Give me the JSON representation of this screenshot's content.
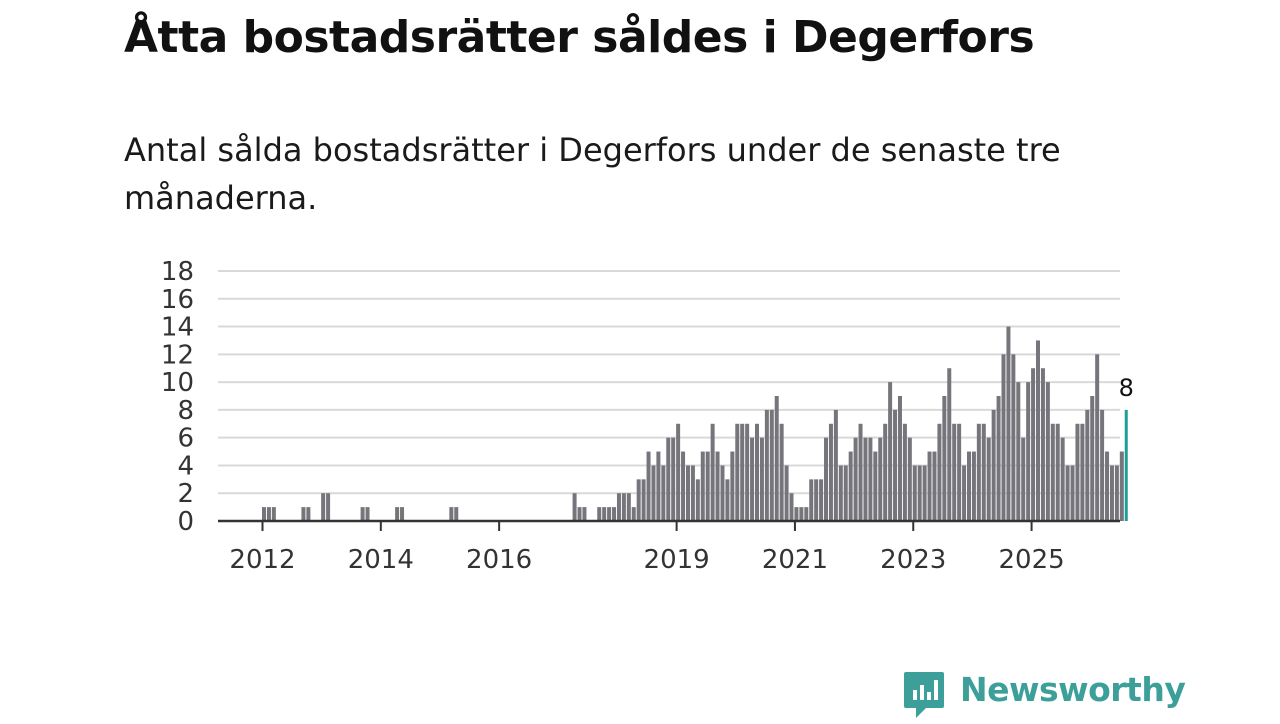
{
  "title": "Åtta bostadsrätter såldes i Degerfors",
  "subtitle": "Antal sålda bostadsrätter i Degerfors under de senaste tre månaderna.",
  "brand": {
    "name": "Newsworthy",
    "color": "#3c9f99"
  },
  "colors": {
    "bar": "#76757b",
    "highlight": "#1f9e98",
    "grid": "#d9d9d9",
    "axis": "#333333"
  },
  "chart_data": {
    "type": "bar",
    "title": "",
    "xlabel": "",
    "ylabel": "",
    "ylim": [
      0,
      18
    ],
    "y_ticks": [
      0,
      2,
      4,
      6,
      8,
      10,
      12,
      14,
      16,
      18
    ],
    "x_ticks": [
      {
        "label": "2012",
        "index": 0
      },
      {
        "label": "2014",
        "index": 24
      },
      {
        "label": "2016",
        "index": 48
      },
      {
        "label": "2019",
        "index": 84
      },
      {
        "label": "2021",
        "index": 108
      },
      {
        "label": "2023",
        "index": 132
      },
      {
        "label": "2025",
        "index": 156
      }
    ],
    "first_category": "2012-01",
    "frequency": "monthly",
    "values": [
      1,
      1,
      1,
      0,
      0,
      0,
      0,
      0,
      1,
      1,
      0,
      0,
      2,
      2,
      0,
      0,
      0,
      0,
      0,
      0,
      1,
      1,
      0,
      0,
      0,
      0,
      0,
      1,
      1,
      0,
      0,
      0,
      0,
      0,
      0,
      0,
      0,
      0,
      1,
      1,
      0,
      0,
      0,
      0,
      0,
      0,
      0,
      0,
      0,
      0,
      0,
      0,
      0,
      0,
      0,
      0,
      0,
      0,
      0,
      0,
      0,
      0,
      0,
      2,
      1,
      1,
      0,
      0,
      1,
      1,
      1,
      1,
      2,
      2,
      2,
      1,
      3,
      3,
      5,
      4,
      5,
      4,
      6,
      6,
      7,
      5,
      4,
      4,
      3,
      5,
      5,
      7,
      5,
      4,
      3,
      5,
      7,
      7,
      7,
      6,
      7,
      6,
      8,
      8,
      9,
      7,
      4,
      2,
      1,
      1,
      1,
      3,
      3,
      3,
      6,
      7,
      8,
      4,
      4,
      5,
      6,
      7,
      6,
      6,
      5,
      6,
      7,
      10,
      8,
      9,
      7,
      6,
      4,
      4,
      4,
      5,
      5,
      7,
      9,
      11,
      7,
      7,
      4,
      5,
      5,
      7,
      7,
      6,
      8,
      9,
      12,
      14,
      12,
      10,
      6,
      10,
      11,
      13,
      11,
      10,
      7,
      7,
      6,
      4,
      4,
      7,
      7,
      8,
      9,
      12,
      8,
      5,
      4,
      4,
      5,
      8
    ],
    "highlight": {
      "index": 175,
      "label": "8"
    }
  }
}
